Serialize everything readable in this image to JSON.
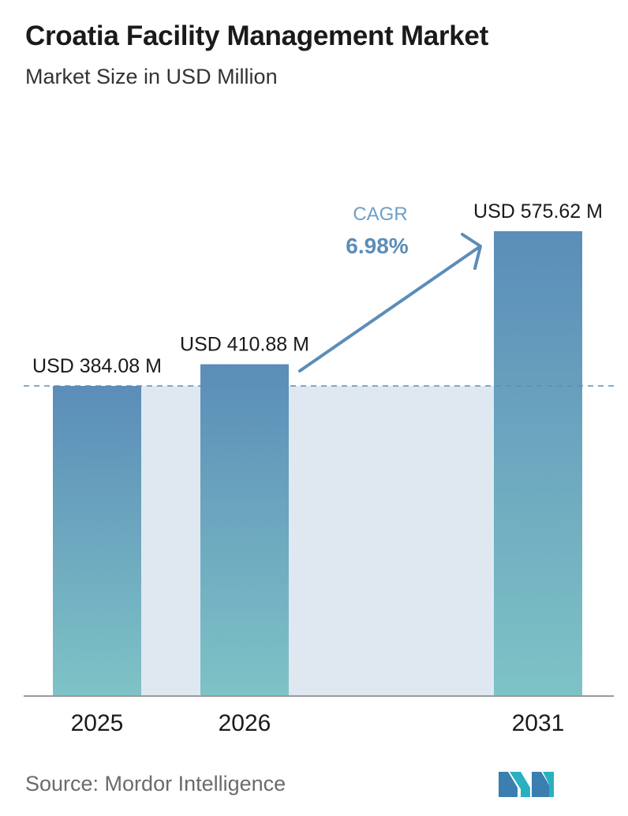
{
  "header": {
    "title": "Croatia Facility Management Market",
    "subtitle": "Market Size in USD Million"
  },
  "chart_data": {
    "type": "bar",
    "categories": [
      "2025",
      "2026",
      "2031"
    ],
    "values": [
      384.08,
      410.88,
      575.62
    ],
    "value_labels": [
      "USD 384.08 M",
      "USD 410.88 M",
      "USD 575.62 M"
    ],
    "title": "Croatia Facility Management Market",
    "subtitle": "Market Size in USD Million",
    "annotation": {
      "label": "CAGR",
      "value": "6.98%"
    },
    "reference_line": 384.08,
    "grid": false,
    "colors": {
      "bar_top": "#5b8db8",
      "bar_bottom": "#7ec3c6",
      "shade": "#dfe8f1",
      "arrow": "#5b8db8",
      "cagr_label": "#6f9fc4",
      "cagr_value": "#5b8db8",
      "baseline": "#9a9a9a",
      "dashed": "#5b8db8"
    }
  },
  "footer": {
    "source": "Source:  Mordor Intelligence",
    "logo_icon": "mordor-intelligence-logo-icon"
  }
}
